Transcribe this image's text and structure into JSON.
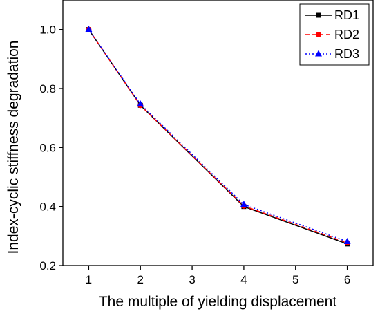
{
  "chart_data": {
    "type": "line",
    "title": "",
    "xlabel": "The multiple of yielding displacement",
    "ylabel": "Index-cyclic stiffness degradation",
    "xlim": [
      0.5,
      6.5
    ],
    "ylim": [
      0.2,
      1.1
    ],
    "xticks": [
      1,
      2,
      3,
      4,
      5,
      6
    ],
    "yticks": [
      0.2,
      0.4,
      0.6,
      0.8,
      1.0
    ],
    "xtick_labels": [
      "1",
      "2",
      "3",
      "4",
      "5",
      "6"
    ],
    "ytick_labels": [
      "0.2",
      "0.4",
      "0.6",
      "0.8",
      "1.0"
    ],
    "grid": false,
    "legend_position": "top-right",
    "series": [
      {
        "name": "RD1",
        "x": [
          1,
          2,
          4,
          6
        ],
        "values": [
          1.0,
          0.743,
          0.4,
          0.273
        ],
        "color": "#000000",
        "marker": "square",
        "line_style": "solid"
      },
      {
        "name": "RD2",
        "x": [
          1,
          2,
          4,
          6
        ],
        "values": [
          1.0,
          0.743,
          0.402,
          0.277
        ],
        "color": "#ff0000",
        "marker": "circle",
        "line_style": "dashed"
      },
      {
        "name": "RD3",
        "x": [
          1,
          2,
          4,
          6
        ],
        "values": [
          1.0,
          0.747,
          0.407,
          0.281
        ],
        "color": "#0000ff",
        "marker": "triangle",
        "line_style": "dotted"
      }
    ]
  }
}
